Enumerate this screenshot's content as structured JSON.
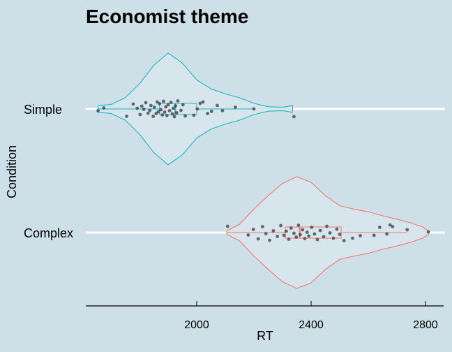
{
  "chart_data": {
    "type": "violin",
    "title": "Economist theme",
    "xlabel": "RT",
    "ylabel": "Condition",
    "xlim": [
      1600,
      2850
    ],
    "xticks": [
      2000,
      2400,
      2800
    ],
    "categories": [
      "Complex",
      "Simple"
    ],
    "grid": "horizontal category lines (white)",
    "background": "#cddfe7",
    "series": [
      {
        "category": "Simple",
        "color": "#1fb6c3",
        "fill": "#d6e6ec",
        "range": [
          1655,
          2335
        ],
        "density": [
          [
            1655,
            0.06
          ],
          [
            1700,
            0.08
          ],
          [
            1750,
            0.2
          ],
          [
            1800,
            0.45
          ],
          [
            1850,
            0.78
          ],
          [
            1900,
            1.0
          ],
          [
            1950,
            0.82
          ],
          [
            2000,
            0.52
          ],
          [
            2050,
            0.36
          ],
          [
            2100,
            0.27
          ],
          [
            2150,
            0.2
          ],
          [
            2200,
            0.1
          ],
          [
            2250,
            0.04
          ],
          [
            2300,
            0.03
          ],
          [
            2335,
            0.06
          ]
        ],
        "box": {
          "q1": 1870,
          "median": 1925,
          "q3": 2000,
          "whisker_low": 1655,
          "whisker_high": 2200
        },
        "points": [
          [
            1655,
            0.05
          ],
          [
            1675,
            -0.03
          ],
          [
            1755,
            0.21
          ],
          [
            1778,
            -0.14
          ],
          [
            1792,
            -0.02
          ],
          [
            1802,
            0.16
          ],
          [
            1808,
            -0.08
          ],
          [
            1815,
            0.01
          ],
          [
            1822,
            -0.18
          ],
          [
            1830,
            0.12
          ],
          [
            1836,
            0.04
          ],
          [
            1840,
            -0.1
          ],
          [
            1848,
            0.21
          ],
          [
            1852,
            -0.05
          ],
          [
            1858,
            0.13
          ],
          [
            1862,
            -0.2
          ],
          [
            1866,
            0.08
          ],
          [
            1870,
            -0.15
          ],
          [
            1875,
            0.02
          ],
          [
            1880,
            0.17
          ],
          [
            1884,
            -0.22
          ],
          [
            1888,
            0.09
          ],
          [
            1892,
            -0.06
          ],
          [
            1896,
            0.19
          ],
          [
            1900,
            -0.12
          ],
          [
            1905,
            0.05
          ],
          [
            1910,
            -0.19
          ],
          [
            1915,
            0.14
          ],
          [
            1918,
            -0.02
          ],
          [
            1922,
            0.22
          ],
          [
            1926,
            -0.09
          ],
          [
            1930,
            0.11
          ],
          [
            1934,
            -0.23
          ],
          [
            1945,
            0.04
          ],
          [
            1952,
            -0.12
          ],
          [
            1960,
            0.2
          ],
          [
            1990,
            0.18
          ],
          [
            2002,
            0.0
          ],
          [
            2012,
            -0.16
          ],
          [
            2022,
            -0.2
          ],
          [
            2038,
            0.13
          ],
          [
            2052,
            0.07
          ],
          [
            2072,
            -0.1
          ],
          [
            2090,
            0.05
          ],
          [
            2135,
            -0.05
          ],
          [
            2200,
            0.0
          ],
          [
            2340,
            0.22
          ]
        ]
      },
      {
        "category": "Complex",
        "color": "#f8766d",
        "fill": "#d6e6ec",
        "range": [
          2105,
          2810
        ],
        "density": [
          [
            2105,
            0.03
          ],
          [
            2150,
            0.15
          ],
          [
            2200,
            0.42
          ],
          [
            2250,
            0.66
          ],
          [
            2300,
            0.88
          ],
          [
            2350,
            1.0
          ],
          [
            2400,
            0.9
          ],
          [
            2450,
            0.66
          ],
          [
            2500,
            0.48
          ],
          [
            2550,
            0.42
          ],
          [
            2600,
            0.37
          ],
          [
            2650,
            0.3
          ],
          [
            2700,
            0.24
          ],
          [
            2750,
            0.17
          ],
          [
            2790,
            0.1
          ],
          [
            2810,
            0.03
          ]
        ],
        "box": {
          "q1": 2310,
          "median": 2360,
          "q3": 2505,
          "whisker_low": 2105,
          "whisker_high": 2735
        },
        "points": [
          [
            2108,
            -0.18
          ],
          [
            2180,
            0.07
          ],
          [
            2198,
            -0.09
          ],
          [
            2215,
            0.18
          ],
          [
            2230,
            -0.17
          ],
          [
            2242,
            0.03
          ],
          [
            2255,
            0.22
          ],
          [
            2268,
            -0.05
          ],
          [
            2282,
            0.11
          ],
          [
            2294,
            -0.2
          ],
          [
            2305,
            0.08
          ],
          [
            2313,
            -0.04
          ],
          [
            2322,
            0.19
          ],
          [
            2330,
            -0.13
          ],
          [
            2340,
            0.02
          ],
          [
            2348,
            0.13
          ],
          [
            2356,
            -0.21
          ],
          [
            2362,
            0.06
          ],
          [
            2370,
            -0.08
          ],
          [
            2378,
            0.17
          ],
          [
            2386,
            -0.01
          ],
          [
            2392,
            0.1
          ],
          [
            2402,
            -0.15
          ],
          [
            2412,
            0.04
          ],
          [
            2422,
            0.2
          ],
          [
            2432,
            -0.06
          ],
          [
            2444,
            0.12
          ],
          [
            2455,
            -0.18
          ],
          [
            2466,
            0.01
          ],
          [
            2478,
            0.16
          ],
          [
            2490,
            -0.1
          ],
          [
            2500,
            0.05
          ],
          [
            2515,
            0.23
          ],
          [
            2545,
            0.16
          ],
          [
            2572,
            0.09
          ],
          [
            2620,
            0.08
          ],
          [
            2640,
            -0.15
          ],
          [
            2665,
            0.04
          ],
          [
            2676,
            -0.22
          ],
          [
            2685,
            -0.17
          ],
          [
            2736,
            -0.08
          ],
          [
            2810,
            -0.02
          ]
        ]
      }
    ]
  }
}
